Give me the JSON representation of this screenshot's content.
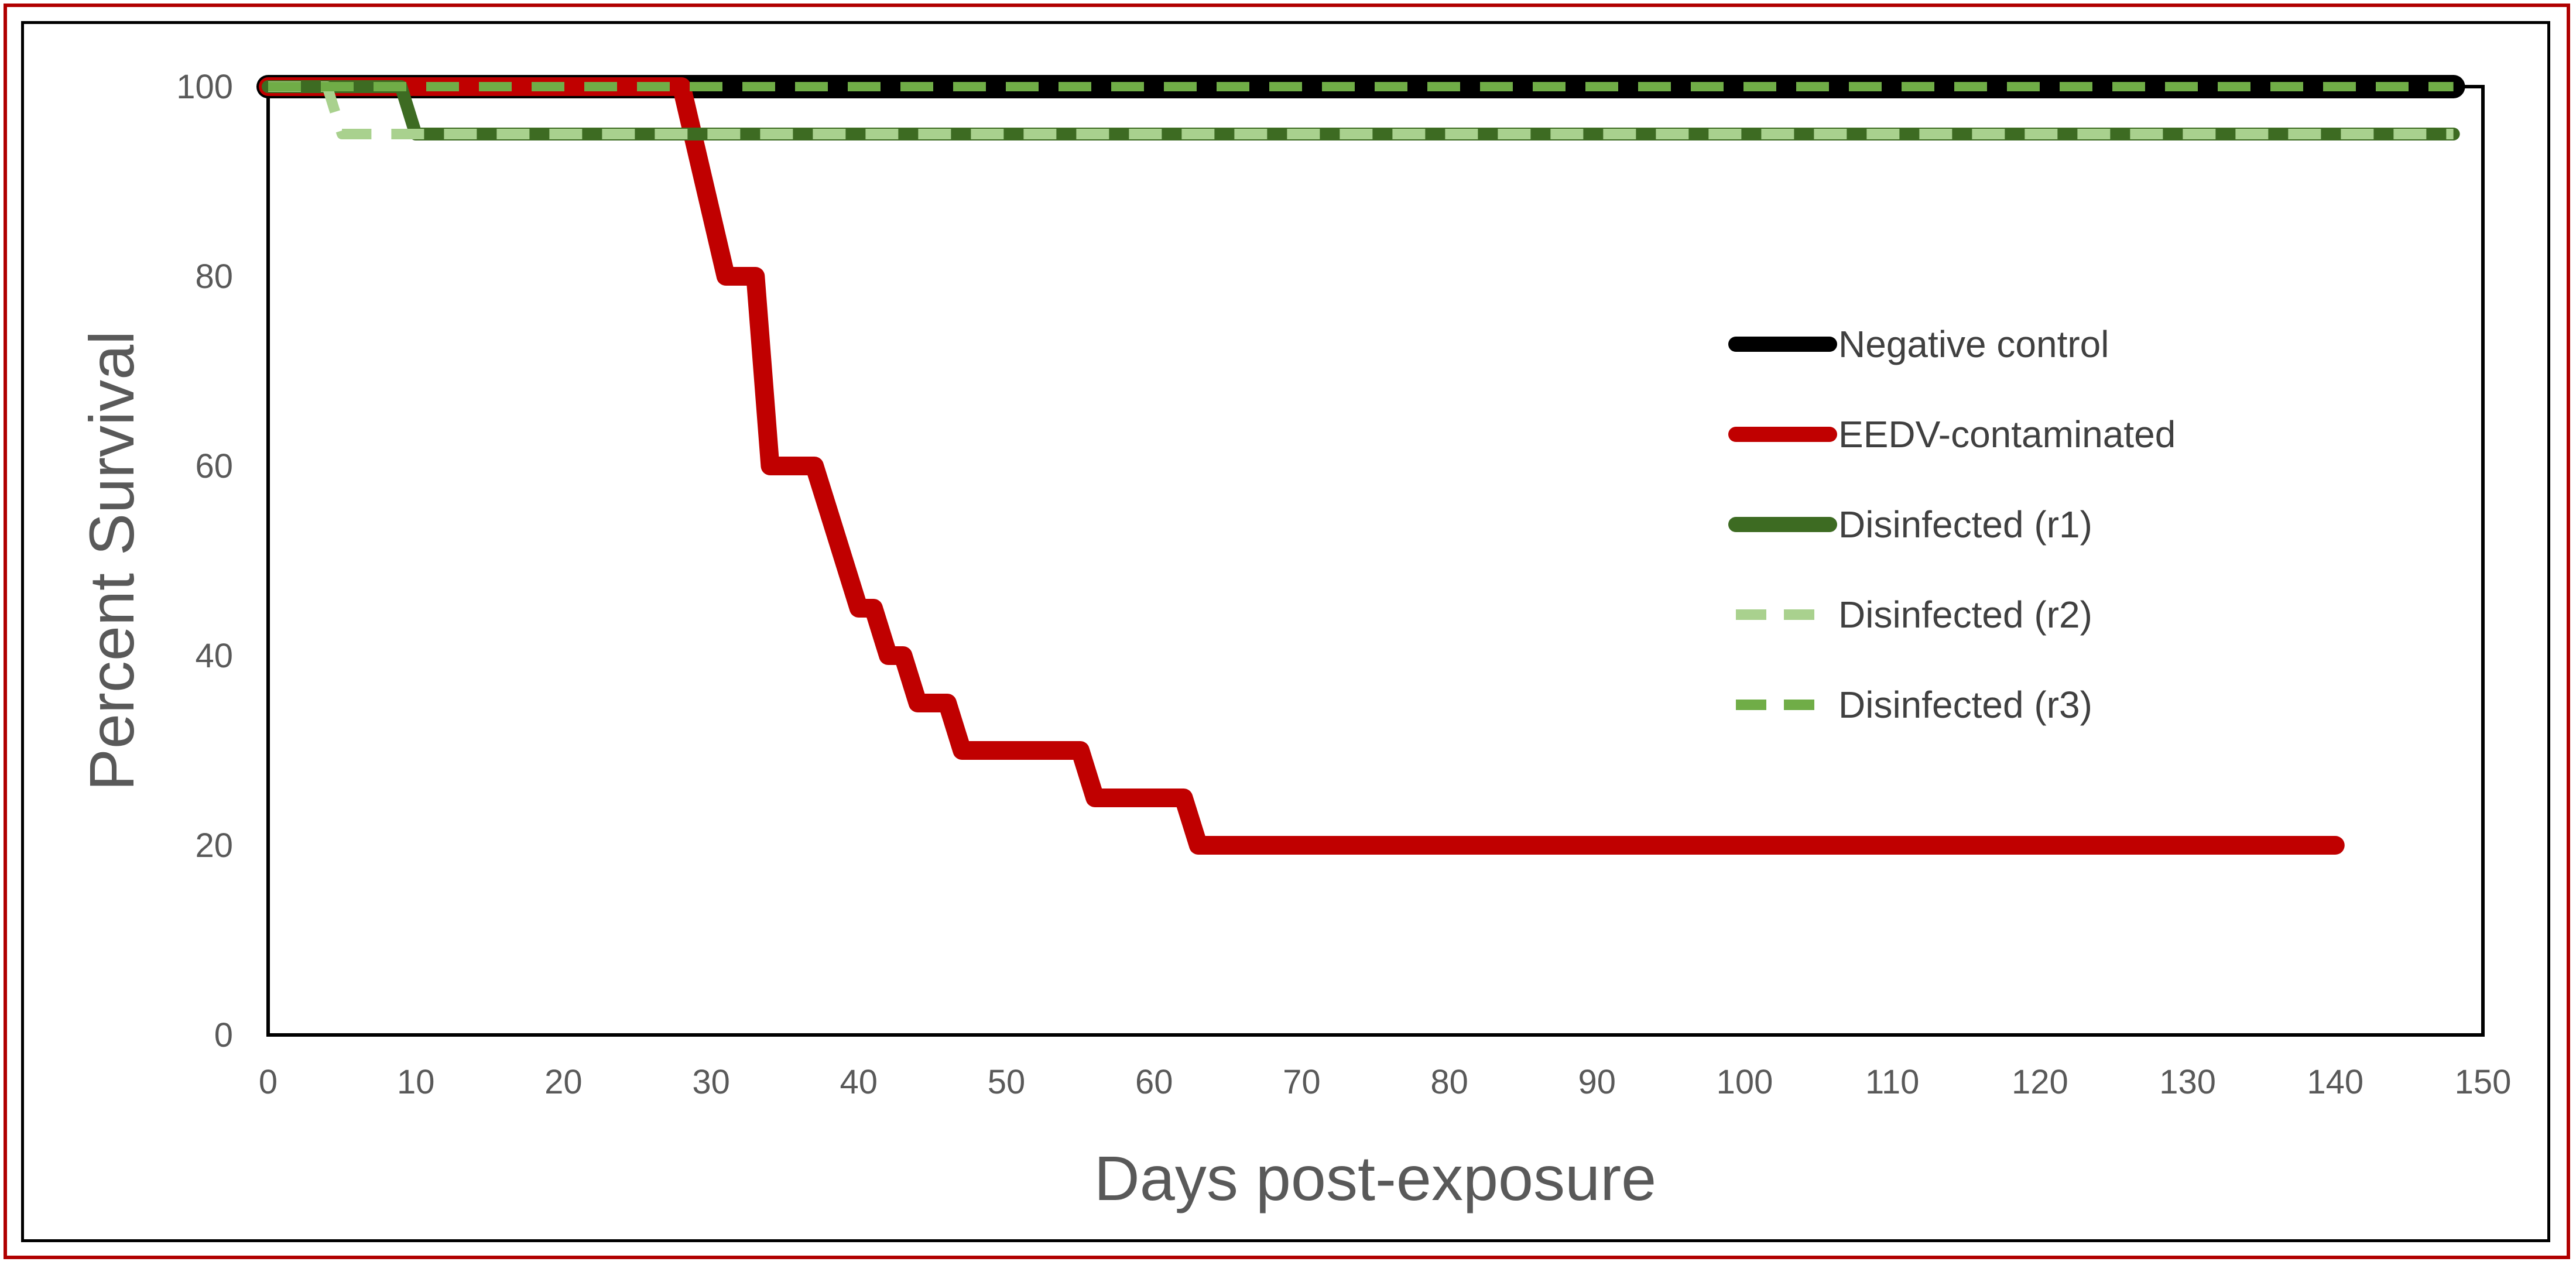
{
  "chart_data": {
    "type": "line",
    "title": "",
    "xlabel": "Days post-exposure",
    "ylabel": "Percent Survival",
    "xlim": [
      0,
      150
    ],
    "ylim": [
      0,
      100
    ],
    "x_ticks": [
      0,
      10,
      20,
      30,
      40,
      50,
      60,
      70,
      80,
      90,
      100,
      110,
      120,
      130,
      140,
      150
    ],
    "y_ticks": [
      0,
      20,
      40,
      60,
      80,
      100
    ],
    "grid": false,
    "legend_position": "right",
    "series": [
      {
        "name": "Negative control",
        "color": "#000000",
        "style": "solid",
        "points": [
          [
            0,
            100
          ],
          [
            148,
            100
          ]
        ]
      },
      {
        "name": "EEDV-contaminated",
        "color": "#c00000",
        "style": "solid",
        "points": [
          [
            0,
            100
          ],
          [
            28,
            100
          ],
          [
            31,
            80
          ],
          [
            33,
            80
          ],
          [
            34,
            60
          ],
          [
            37,
            60
          ],
          [
            38,
            55
          ],
          [
            40,
            45
          ],
          [
            41,
            45
          ],
          [
            42,
            40
          ],
          [
            43,
            40
          ],
          [
            44,
            35
          ],
          [
            46,
            35
          ],
          [
            47,
            30
          ],
          [
            55,
            30
          ],
          [
            56,
            25
          ],
          [
            62,
            25
          ],
          [
            63,
            20
          ],
          [
            140,
            20
          ]
        ]
      },
      {
        "name": "Disinfected (r1)",
        "color": "#3d6b22",
        "style": "solid",
        "points": [
          [
            0,
            100
          ],
          [
            9,
            100
          ],
          [
            10,
            95
          ],
          [
            148,
            95
          ]
        ]
      },
      {
        "name": "Disinfected (r2)",
        "color": "#a9d18e",
        "style": "dashed",
        "points": [
          [
            0,
            100
          ],
          [
            4,
            100
          ],
          [
            5,
            95
          ],
          [
            148,
            95
          ]
        ]
      },
      {
        "name": "Disinfected (r3)",
        "color": "#70ad47",
        "style": "dashed",
        "points": [
          [
            0,
            100
          ],
          [
            148,
            100
          ]
        ]
      }
    ]
  }
}
